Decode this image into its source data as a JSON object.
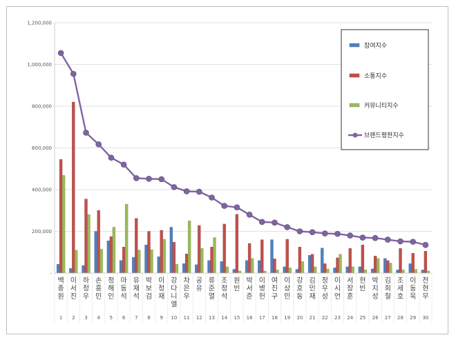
{
  "chart_data": {
    "type": "bar",
    "title": "",
    "xlabel": "",
    "ylabel": "",
    "ylim": [
      0,
      1200000
    ],
    "yticks": [
      "-",
      "200,000",
      "400,000",
      "600,000",
      "800,000",
      "1,000,000",
      "1,200,000"
    ],
    "legend_position": "top-right",
    "categories": [
      "백종원",
      "이서진",
      "하정우",
      "손흥민",
      "정해인",
      "마동석",
      "유재석",
      "박보검",
      "이정재",
      "강다니엘",
      "차은우",
      "공유",
      "류준열",
      "조정석",
      "원빈",
      "박서준",
      "이병헌",
      "여진구",
      "이상민",
      "강호동",
      "김민재",
      "정우성",
      "이시언",
      "서장훈",
      "현빈",
      "박지성",
      "김희철",
      "조세호",
      "이동욱",
      "전현무"
    ],
    "ranks": [
      "1",
      "2",
      "3",
      "4",
      "5",
      "6",
      "7",
      "8",
      "9",
      "10",
      "11",
      "12",
      "13",
      "14",
      "15",
      "16",
      "17",
      "18",
      "19",
      "20",
      "21",
      "22",
      "23",
      "24",
      "25",
      "26",
      "27",
      "28",
      "29",
      "30"
    ],
    "series": [
      {
        "name": "참여지수",
        "color": "#4f81bd",
        "kind": "bar",
        "values": [
          42000,
          22000,
          36000,
          200000,
          155000,
          60000,
          75000,
          135000,
          78000,
          220000,
          45000,
          40000,
          60000,
          55000,
          18000,
          60000,
          60000,
          160000,
          30000,
          18000,
          85000,
          120000,
          25000,
          30000,
          30000,
          20000,
          70000,
          15000,
          45000,
          15000
        ]
      },
      {
        "name": "소통지수",
        "color": "#c0504d",
        "kind": "bar",
        "values": [
          545000,
          820000,
          355000,
          300000,
          175000,
          125000,
          262000,
          200000,
          205000,
          148000,
          92000,
          228000,
          125000,
          235000,
          282000,
          142000,
          160000,
          68000,
          162000,
          125000,
          90000,
          45000,
          73000,
          118000,
          135000,
          82000,
          60000,
          118000,
          95000,
          105000
        ]
      },
      {
        "name": "커뮤니티지수",
        "color": "#9bbb59",
        "kind": "bar",
        "values": [
          468000,
          110000,
          280000,
          115000,
          220000,
          330000,
          110000,
          112000,
          162000,
          42000,
          250000,
          118000,
          170000,
          30000,
          10000,
          70000,
          10000,
          15000,
          25000,
          55000,
          30000,
          20000,
          90000,
          30000,
          15000,
          70000,
          48000,
          15000,
          18000,
          10000
        ]
      },
      {
        "name": "브랜드평판지수",
        "color": "#8064a2",
        "kind": "line",
        "values": [
          1055000,
          955000,
          673000,
          617000,
          553000,
          520000,
          455000,
          452000,
          450000,
          412000,
          392000,
          390000,
          362000,
          322000,
          315000,
          280000,
          245000,
          242000,
          220000,
          200000,
          196000,
          190000,
          188000,
          180000,
          170000,
          168000,
          160000,
          152000,
          150000,
          135000
        ]
      }
    ]
  }
}
